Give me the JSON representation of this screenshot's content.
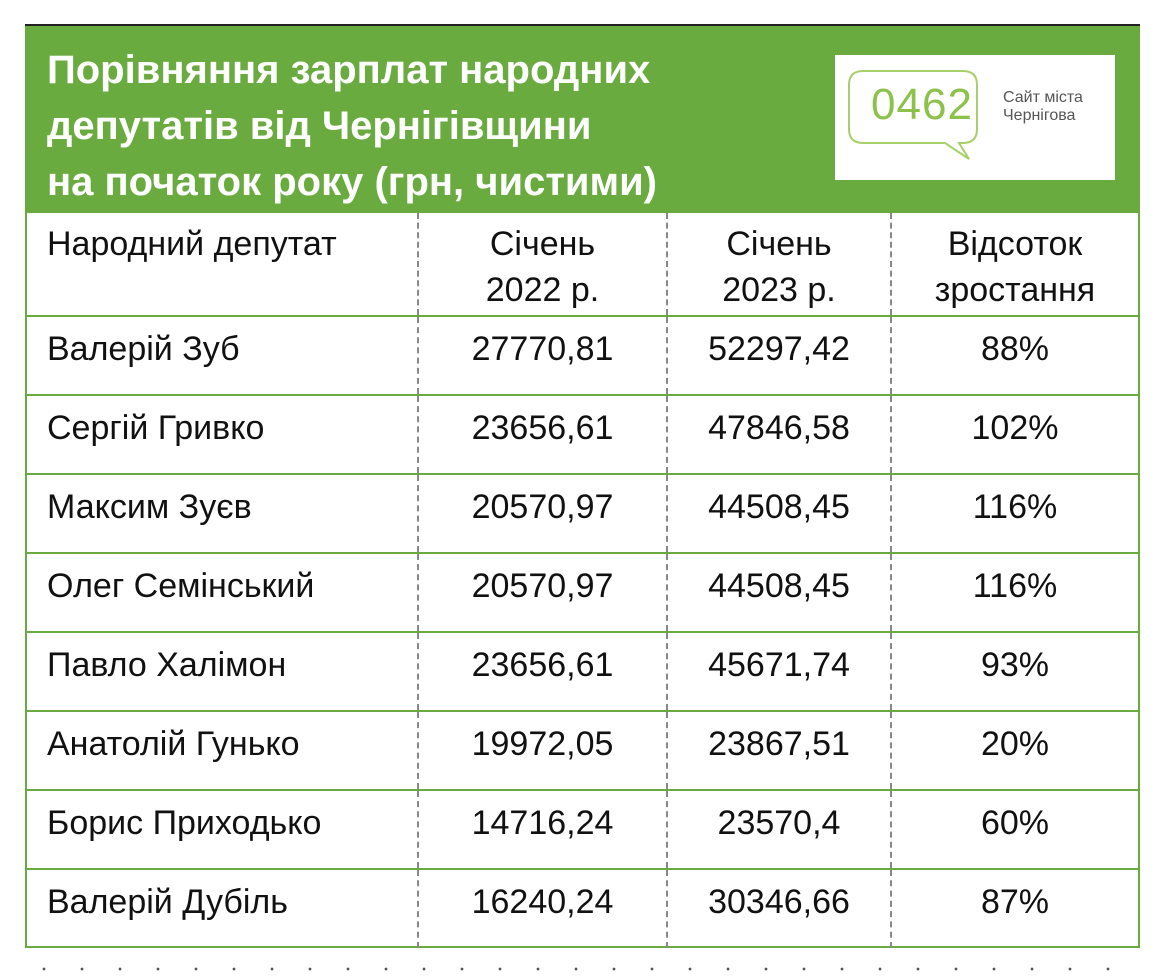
{
  "title": {
    "line1": "Порівняння зарплат народних",
    "line2": "депутатів від Чернігівщини",
    "line3": "на початок року (грн, чистими)"
  },
  "logo": {
    "number": "0462",
    "caption_line1": "Сайт міста",
    "caption_line2": "Чернігова"
  },
  "colors": {
    "accent": "#6aab40",
    "logo_green": "#8cc24a"
  },
  "table": {
    "headers": {
      "name": "Народний депутат",
      "jan2022_line1": "Січень",
      "jan2022_line2": "2022 р.",
      "jan2023_line1": "Січень",
      "jan2023_line2": "2023 р.",
      "growth_line1": "Відсоток",
      "growth_line2": "зростання"
    },
    "rows": [
      {
        "name": "Валерій Зуб",
        "jan2022": "27770,81",
        "jan2023": "52297,42",
        "growth": "88%"
      },
      {
        "name": "Сергій Гривко",
        "jan2022": "23656,61",
        "jan2023": "47846,58",
        "growth": "102%"
      },
      {
        "name": "Максим Зуєв",
        "jan2022": "20570,97",
        "jan2023": "44508,45",
        "growth": "116%"
      },
      {
        "name": "Олег Семінський",
        "jan2022": "20570,97",
        "jan2023": "44508,45",
        "growth": "116%"
      },
      {
        "name": "Павло Халімон",
        "jan2022": "23656,61",
        "jan2023": "45671,74",
        "growth": "93%"
      },
      {
        "name": "Анатолій Гунько",
        "jan2022": "19972,05",
        "jan2023": "23867,51",
        "growth": "20%"
      },
      {
        "name": "Борис Приходько",
        "jan2022": "14716,24",
        "jan2023": "23570,4",
        "growth": "60%"
      },
      {
        "name": "Валерій Дубіль",
        "jan2022": "16240,24",
        "jan2023": "30346,66",
        "growth": "87%"
      }
    ]
  }
}
